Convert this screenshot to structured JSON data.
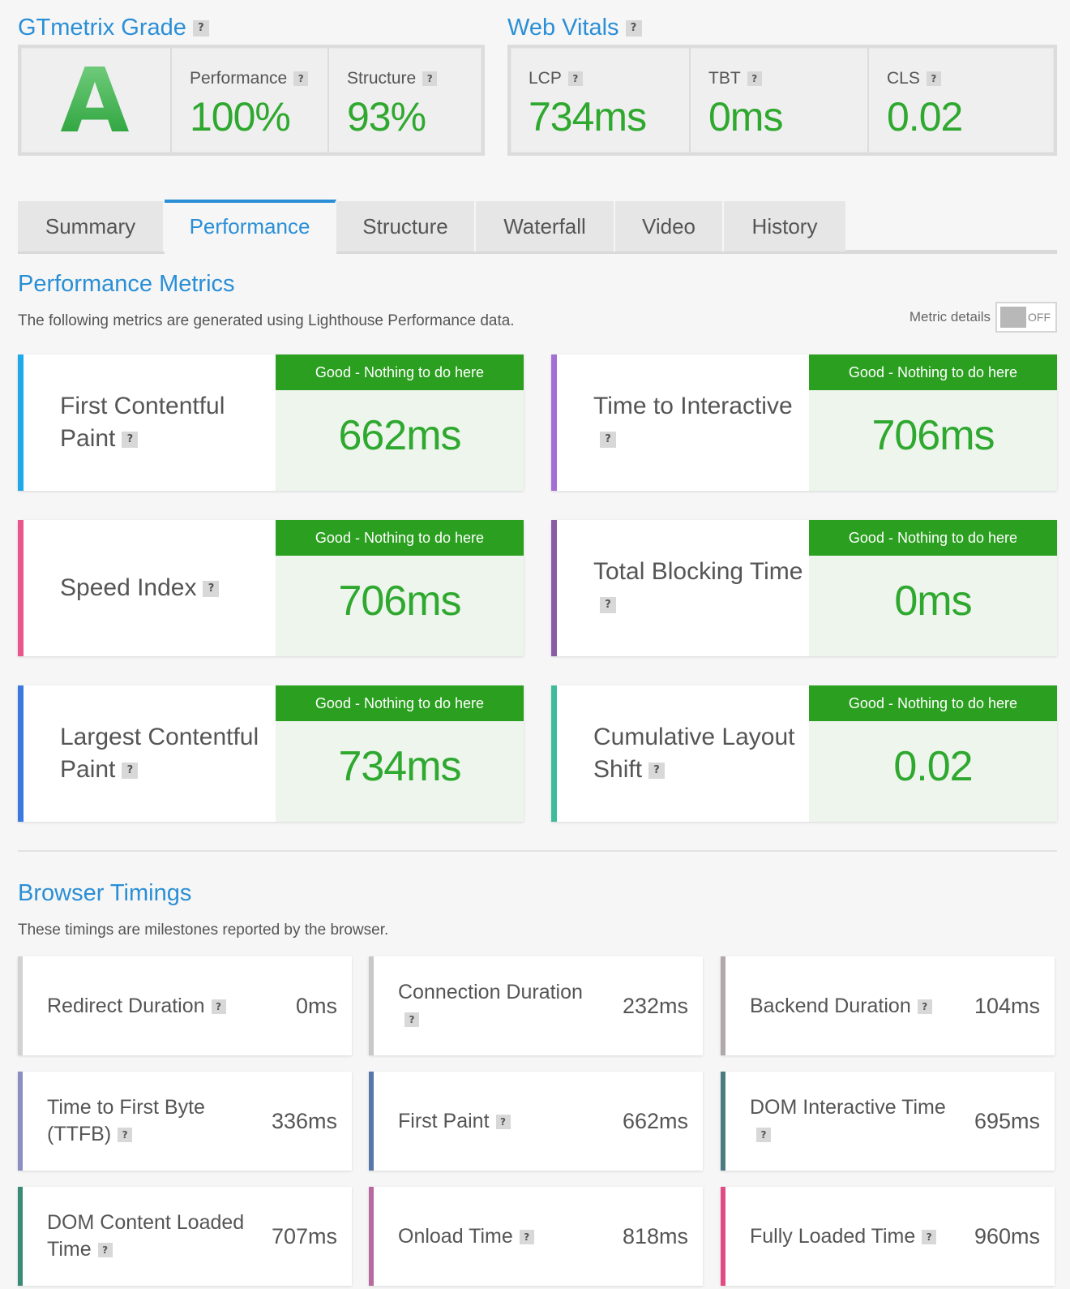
{
  "header": {
    "grade_title": "GTmetrix Grade",
    "grade_letter": "A",
    "grade_metrics": [
      {
        "label": "Performance",
        "value": "100%"
      },
      {
        "label": "Structure",
        "value": "93%"
      }
    ],
    "vitals_title": "Web Vitals",
    "vitals": [
      {
        "label": "LCP",
        "value": "734ms"
      },
      {
        "label": "TBT",
        "value": "0ms"
      },
      {
        "label": "CLS",
        "value": "0.02"
      }
    ],
    "help_glyph": "?"
  },
  "tabs": [
    {
      "label": "Summary"
    },
    {
      "label": "Performance",
      "active": true
    },
    {
      "label": "Structure"
    },
    {
      "label": "Waterfall"
    },
    {
      "label": "Video"
    },
    {
      "label": "History"
    }
  ],
  "performance_metrics": {
    "title": "Performance Metrics",
    "description": "The following metrics are generated using Lighthouse Performance data.",
    "toggle_label": "Metric details",
    "toggle_state": "OFF",
    "items": [
      {
        "label": "First Contentful Paint",
        "status": "Good - Nothing to do here",
        "value": "662ms",
        "color": "#1fa9e8"
      },
      {
        "label": "Time to Interactive",
        "status": "Good - Nothing to do here",
        "value": "706ms",
        "color": "#a36fd6"
      },
      {
        "label": "Speed Index",
        "status": "Good - Nothing to do here",
        "value": "706ms",
        "color": "#e8568c"
      },
      {
        "label": "Total Blocking Time",
        "status": "Good - Nothing to do here",
        "value": "0ms",
        "color": "#8a5aa6"
      },
      {
        "label": "Largest Contentful Paint",
        "status": "Good - Nothing to do here",
        "value": "734ms",
        "color": "#3b78e0"
      },
      {
        "label": "Cumulative Layout Shift",
        "status": "Good - Nothing to do here",
        "value": "0.02",
        "color": "#3dbb9b"
      }
    ]
  },
  "browser_timings": {
    "title": "Browser Timings",
    "description": "These timings are milestones reported by the browser.",
    "items": [
      {
        "label": "Redirect Duration",
        "value": "0ms",
        "color": "#d2d2d2"
      },
      {
        "label": "Connection Duration",
        "value": "232ms",
        "color": "#c8c8c8"
      },
      {
        "label": "Backend Duration",
        "value": "104ms",
        "color": "#b0a8ad"
      },
      {
        "label": "Time to First Byte (TTFB)",
        "value": "336ms",
        "color": "#8c8ec2"
      },
      {
        "label": "First Paint",
        "value": "662ms",
        "color": "#5876a8"
      },
      {
        "label": "DOM Interactive Time",
        "value": "695ms",
        "color": "#4c7a82"
      },
      {
        "label": "DOM Content Loaded Time",
        "value": "707ms",
        "color": "#3a8a78"
      },
      {
        "label": "Onload Time",
        "value": "818ms",
        "color": "#b86aa0"
      },
      {
        "label": "Fully Loaded Time",
        "value": "960ms",
        "color": "#e24c86"
      }
    ]
  }
}
